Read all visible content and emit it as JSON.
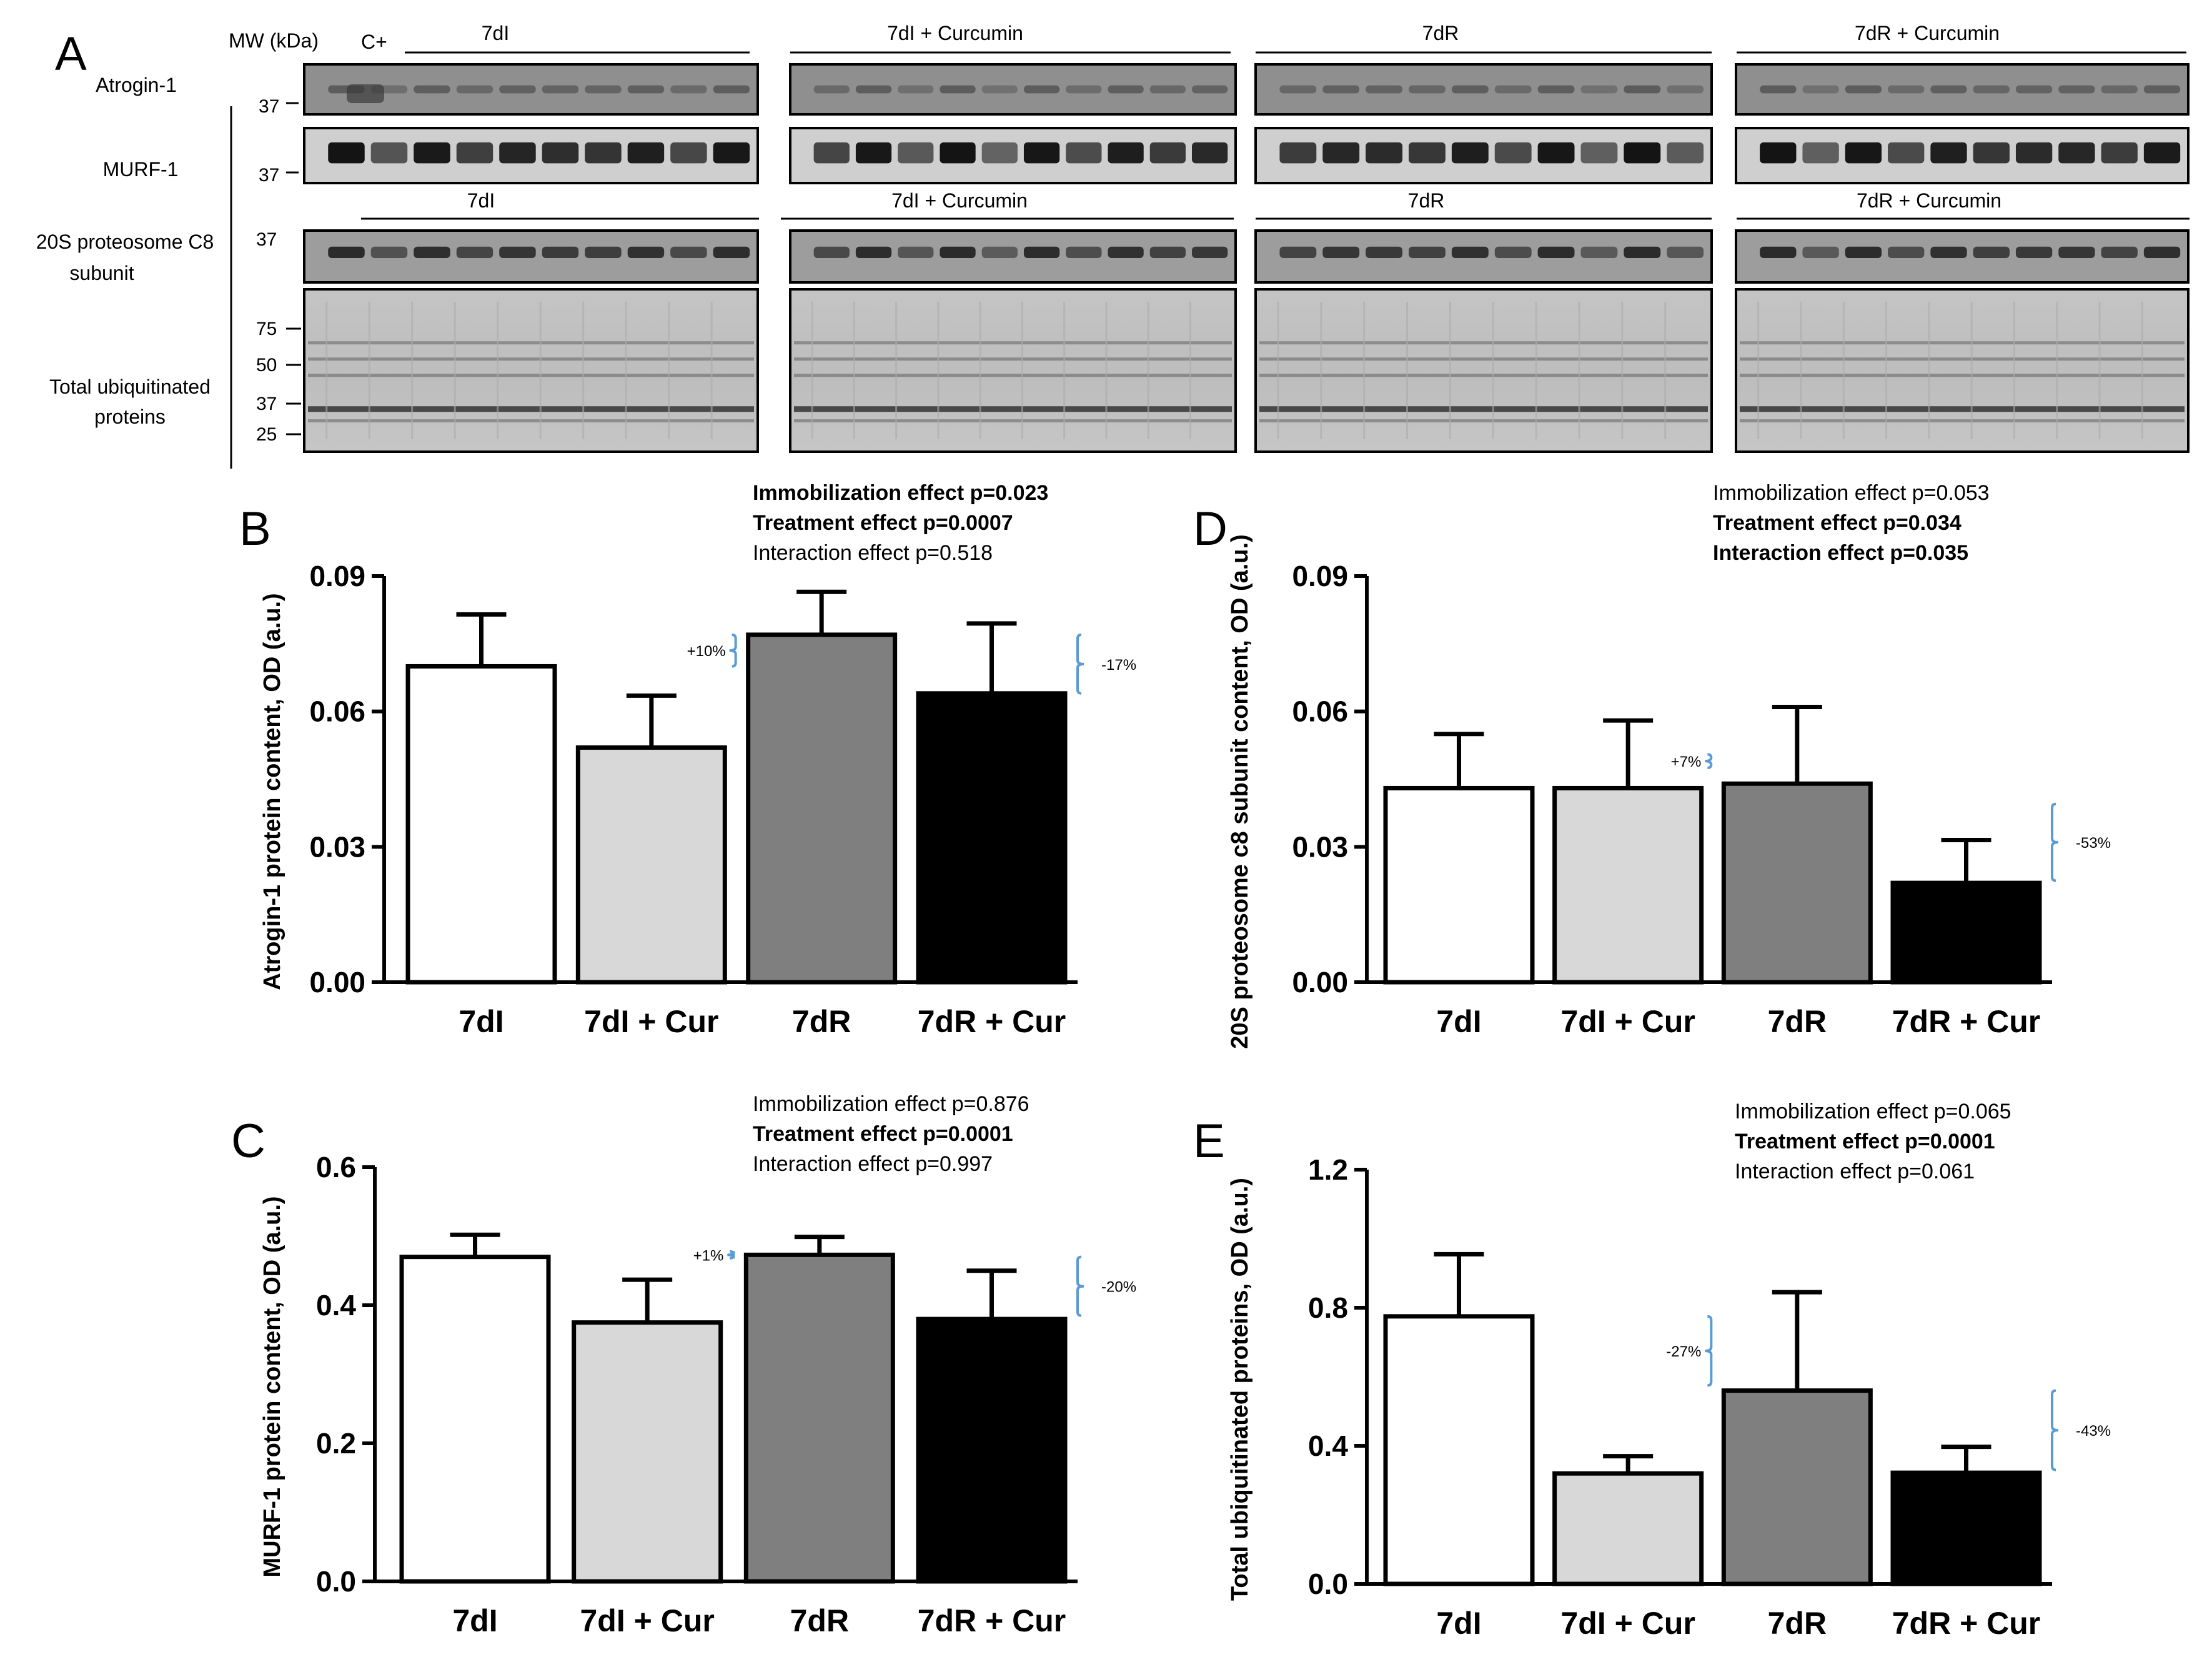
{
  "figure": {
    "panel_letters": [
      "A",
      "B",
      "C",
      "D",
      "E"
    ],
    "blot": {
      "mw_header": "MW (kDa)",
      "positive_control": "C+",
      "row_labels": [
        {
          "lines": [
            "Atrogin-1"
          ]
        },
        {
          "lines": [
            "MURF-1"
          ]
        },
        {
          "lines": [
            "20S proteosome C8",
            "subunit"
          ]
        },
        {
          "lines": [
            "Total ubiquitinated",
            "proteins"
          ]
        }
      ],
      "group_titles_top": [
        "7dI",
        "7dI + Curcumin",
        "7dR",
        "7dR + Curcumin"
      ],
      "group_titles_mid": [
        "7dI",
        "7dI + Curcumin",
        "7dR",
        "7dR + Curcumin"
      ],
      "mw_markers": {
        "atrogin": [
          "37"
        ],
        "murf": [
          "37"
        ],
        "c8": [
          "37"
        ],
        "ubiq": [
          "75",
          "50",
          "37",
          "25"
        ]
      }
    }
  },
  "chart_data": [
    {
      "id": "B",
      "type": "bar",
      "categories": [
        "7dI",
        "7dI + Cur",
        "7dR",
        "7dR + Cur"
      ],
      "values": [
        0.07,
        0.052,
        0.077,
        0.064
      ],
      "errors": [
        0.0115,
        0.0115,
        0.0095,
        0.0155
      ],
      "bar_colors": [
        "#ffffff",
        "#d8d8d8",
        "#7f7f7f",
        "#000000"
      ],
      "ylabel": "Atrogin-1 protein content, OD (a.u.)",
      "ylim": [
        0,
        0.09
      ],
      "yticks": [
        "0.00",
        "0.03",
        "0.06",
        "0.09"
      ],
      "stats": [
        {
          "text": "Immobilization effect p=0.023",
          "bold": true
        },
        {
          "text": "Treatment effect p=0.0007",
          "bold": true
        },
        {
          "text": "Interaction effect p=0.518",
          "bold": false
        }
      ],
      "annotations": [
        {
          "text": "+10%",
          "from": 0.07,
          "to": 0.077,
          "beside": 2
        },
        {
          "text": "-17%",
          "from": 0.064,
          "to": 0.077,
          "beside": 3
        }
      ]
    },
    {
      "id": "C",
      "type": "bar",
      "categories": [
        "7dI",
        "7dI + Cur",
        "7dR",
        "7dR + Cur"
      ],
      "values": [
        0.47,
        0.375,
        0.473,
        0.38
      ],
      "errors": [
        0.032,
        0.062,
        0.026,
        0.07
      ],
      "bar_colors": [
        "#ffffff",
        "#d8d8d8",
        "#7f7f7f",
        "#000000"
      ],
      "ylabel": "MURF-1 protein content, OD (a.u.)",
      "ylim": [
        0,
        0.6
      ],
      "yticks": [
        "0.0",
        "0.2",
        "0.4",
        "0.6"
      ],
      "stats": [
        {
          "text": "Immobilization effect p=0.876",
          "bold": false
        },
        {
          "text": "Treatment effect p=0.0001",
          "bold": true
        },
        {
          "text": "Interaction effect p=0.997",
          "bold": false
        }
      ],
      "annotations": [
        {
          "text": "+1%",
          "from": 0.468,
          "to": 0.478,
          "beside": 2
        },
        {
          "text": "-20%",
          "from": 0.385,
          "to": 0.47,
          "beside": 3
        }
      ]
    },
    {
      "id": "D",
      "type": "bar",
      "categories": [
        "7dI",
        "7dI + Cur",
        "7dR",
        "7dR + Cur"
      ],
      "values": [
        0.043,
        0.043,
        0.044,
        0.022
      ],
      "errors": [
        0.012,
        0.015,
        0.017,
        0.0095
      ],
      "bar_colors": [
        "#ffffff",
        "#d8d8d8",
        "#7f7f7f",
        "#000000"
      ],
      "ylabel": "20S proteosome c8 subunit content, OD (a.u.)",
      "ylim": [
        0,
        0.09
      ],
      "yticks": [
        "0.00",
        "0.03",
        "0.06",
        "0.09"
      ],
      "stats": [
        {
          "text": "Immobilization effect p=0.053",
          "bold": false
        },
        {
          "text": "Treatment effect p=0.034",
          "bold": true
        },
        {
          "text": "Interaction effect p=0.035",
          "bold": true
        }
      ],
      "annotations": [
        {
          "text": "+7%",
          "from": 0.0475,
          "to": 0.0505,
          "beside": 2
        },
        {
          "text": "-53%",
          "from": 0.0225,
          "to": 0.0395,
          "beside": 3
        }
      ]
    },
    {
      "id": "E",
      "type": "bar",
      "categories": [
        "7dI",
        "7dI + Cur",
        "7dR",
        "7dR + Cur"
      ],
      "values": [
        0.775,
        0.32,
        0.56,
        0.322
      ],
      "errors": [
        0.18,
        0.05,
        0.285,
        0.075
      ],
      "bar_colors": [
        "#ffffff",
        "#d8d8d8",
        "#7f7f7f",
        "#000000"
      ],
      "ylabel": "Total ubiquitinated proteins, OD (a.u.)",
      "ylim": [
        0,
        1.2
      ],
      "yticks": [
        "0.0",
        "0.4",
        "0.8",
        "1.2"
      ],
      "stats": [
        {
          "text": "Immobilization effect p=0.065",
          "bold": false
        },
        {
          "text": "Treatment effect p=0.0001",
          "bold": true
        },
        {
          "text": "Interaction effect p=0.061",
          "bold": false
        }
      ],
      "annotations": [
        {
          "text": "-27%",
          "from": 0.575,
          "to": 0.775,
          "beside": 2
        },
        {
          "text": "-43%",
          "from": 0.33,
          "to": 0.56,
          "beside": 3
        }
      ]
    }
  ]
}
